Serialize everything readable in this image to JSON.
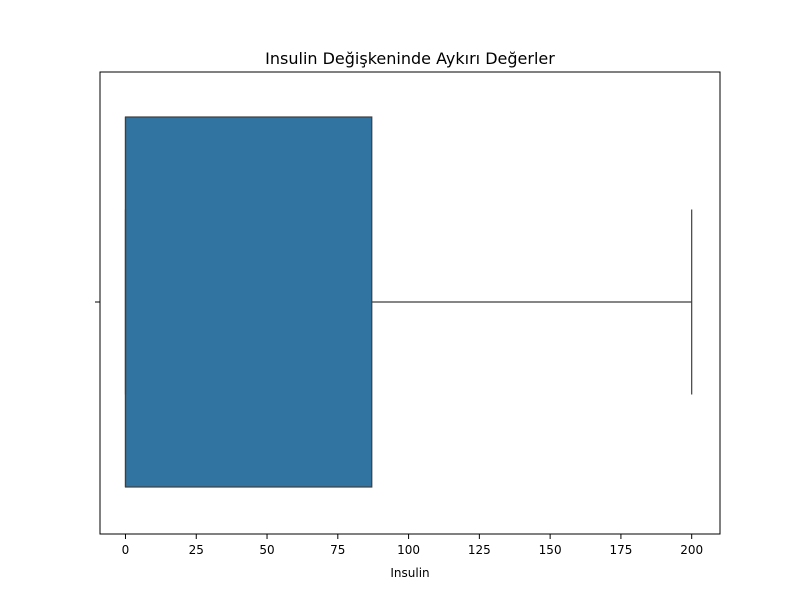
{
  "chart_data": {
    "type": "box",
    "title": "Insulin Değişkeninde Aykırı Değerler",
    "xlabel": "Insulin",
    "ylabel": "",
    "xlim": [
      -9.0,
      210.0
    ],
    "orientation": "horizontal",
    "grid": false,
    "x_ticks": [
      0,
      25,
      50,
      75,
      100,
      125,
      150,
      175,
      200
    ],
    "x_tick_labels": [
      "0",
      "25",
      "50",
      "75",
      "100",
      "125",
      "150",
      "175",
      "200"
    ],
    "series": [
      {
        "color": "#3274a1",
        "whisker_low": 0,
        "q1": 0,
        "median": 0,
        "q3": 87,
        "whisker_high": 200,
        "outliers": []
      }
    ]
  }
}
